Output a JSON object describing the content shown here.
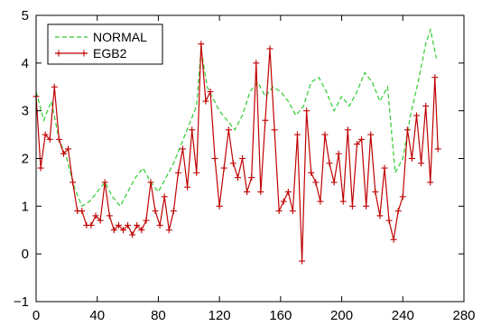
{
  "chart_data": {
    "type": "line",
    "xlim": [
      0,
      280
    ],
    "ylim": [
      -1,
      5
    ],
    "xticks": [
      0,
      40,
      80,
      120,
      160,
      200,
      240,
      280
    ],
    "yticks": [
      -1,
      0,
      1,
      2,
      3,
      4,
      5
    ],
    "xticklabels": [
      "0",
      "40",
      "80",
      "120",
      "160",
      "200",
      "240",
      "280"
    ],
    "yticklabels": [
      "−1",
      "0",
      "1",
      "2",
      "3",
      "4",
      "5"
    ],
    "grid": false,
    "legend_position": "top-left",
    "series": [
      {
        "name": "NORMAL",
        "color": "#2ecc2e",
        "style": "dashed",
        "x": [
          0,
          5,
          10,
          15,
          20,
          25,
          30,
          35,
          40,
          45,
          50,
          55,
          60,
          65,
          70,
          75,
          80,
          85,
          90,
          95,
          100,
          105,
          108,
          112,
          115,
          120,
          125,
          130,
          135,
          140,
          145,
          150,
          155,
          160,
          165,
          170,
          175,
          180,
          185,
          190,
          195,
          200,
          205,
          210,
          215,
          220,
          225,
          230,
          235,
          240,
          245,
          250,
          255,
          258,
          262
        ],
        "y": [
          3.4,
          2.8,
          3.2,
          2.4,
          2.0,
          1.4,
          1.0,
          1.1,
          1.3,
          1.5,
          1.2,
          1.0,
          1.3,
          1.6,
          1.8,
          1.5,
          1.3,
          1.6,
          1.9,
          2.3,
          2.7,
          3.1,
          4.3,
          3.5,
          3.3,
          3.0,
          2.8,
          2.6,
          2.9,
          3.4,
          3.6,
          3.3,
          3.5,
          3.4,
          3.2,
          2.9,
          3.1,
          3.6,
          3.7,
          3.4,
          3.0,
          3.3,
          3.1,
          3.4,
          3.8,
          3.6,
          3.2,
          3.5,
          1.7,
          2.0,
          2.9,
          3.6,
          4.4,
          4.7,
          4.1
        ]
      },
      {
        "name": "EGB2",
        "color": "#c00000",
        "style": "solid",
        "marker": "+",
        "x": [
          0,
          3,
          6,
          9,
          12,
          15,
          18,
          21,
          24,
          27,
          30,
          33,
          36,
          39,
          42,
          45,
          48,
          51,
          54,
          57,
          60,
          63,
          66,
          69,
          72,
          75,
          78,
          81,
          84,
          87,
          90,
          93,
          96,
          99,
          102,
          105,
          108,
          111,
          114,
          117,
          120,
          123,
          126,
          129,
          132,
          135,
          138,
          141,
          144,
          147,
          150,
          153,
          156,
          159,
          162,
          165,
          168,
          171,
          174,
          177,
          180,
          183,
          186,
          189,
          192,
          195,
          198,
          201,
          204,
          207,
          210,
          213,
          216,
          219,
          222,
          225,
          228,
          231,
          234,
          237,
          240,
          243,
          246,
          249,
          252,
          255,
          258,
          261,
          263
        ],
        "y": [
          3.3,
          1.8,
          2.5,
          2.4,
          3.5,
          2.4,
          2.1,
          2.2,
          1.5,
          0.9,
          0.9,
          0.6,
          0.6,
          0.8,
          0.7,
          1.5,
          0.8,
          0.5,
          0.6,
          0.5,
          0.6,
          0.4,
          0.6,
          0.5,
          0.7,
          1.5,
          0.9,
          0.6,
          1.2,
          0.5,
          0.9,
          1.7,
          2.2,
          1.4,
          2.6,
          1.7,
          4.4,
          3.2,
          3.4,
          2.0,
          1.0,
          1.8,
          2.6,
          1.9,
          1.6,
          2.0,
          1.3,
          1.6,
          4.0,
          1.3,
          2.8,
          4.3,
          2.6,
          0.9,
          1.1,
          1.3,
          0.9,
          2.5,
          -0.15,
          3.0,
          1.7,
          1.5,
          1.1,
          2.5,
          1.9,
          1.5,
          2.1,
          1.1,
          2.6,
          1.0,
          2.3,
          2.4,
          1.0,
          2.5,
          1.3,
          0.8,
          1.8,
          0.7,
          0.3,
          0.9,
          1.2,
          2.6,
          2.0,
          2.9,
          1.9,
          3.1,
          1.5,
          3.7,
          2.2
        ]
      }
    ]
  }
}
